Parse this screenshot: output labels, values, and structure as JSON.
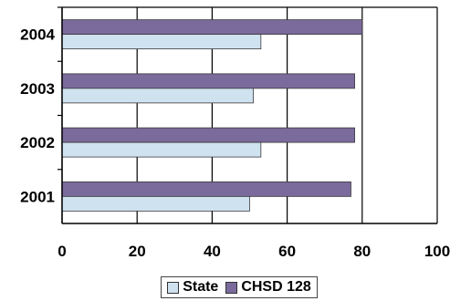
{
  "chart_data": {
    "type": "bar",
    "orientation": "horizontal",
    "categories": [
      "2001",
      "2002",
      "2003",
      "2004"
    ],
    "series": [
      {
        "name": "State",
        "values": [
          50,
          53,
          51,
          53
        ],
        "color": "#cfe2f0"
      },
      {
        "name": "CHSD 128",
        "values": [
          77,
          78,
          78,
          80
        ],
        "color": "#7b6a9c"
      }
    ],
    "xlim": [
      0,
      100
    ],
    "x_ticks": [
      "0",
      "20",
      "40",
      "60",
      "80",
      "100"
    ],
    "grid": true,
    "legend_position": "bottom-center"
  }
}
